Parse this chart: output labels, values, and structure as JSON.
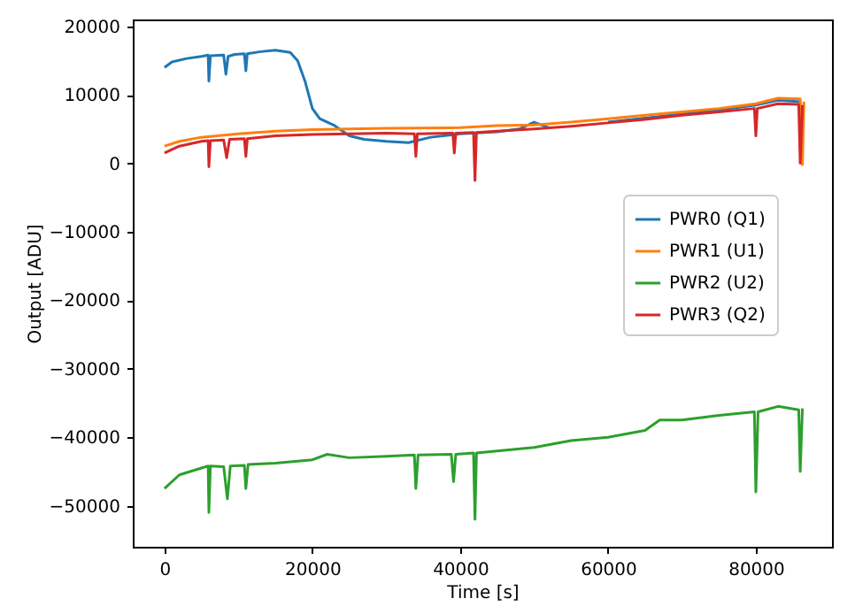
{
  "chart_data": {
    "type": "line",
    "xlabel": "Time [s]",
    "ylabel": "Output [ADU]",
    "xlim": [
      -4300,
      90300
    ],
    "ylim": [
      -56000,
      21000
    ],
    "xticks": [
      0,
      20000,
      40000,
      60000,
      80000
    ],
    "yticks": [
      20000,
      10000,
      0,
      {
        "value": -10000,
        "label": "−10000"
      },
      {
        "value": -20000,
        "label": "−20000"
      },
      {
        "value": -30000,
        "label": "−30000"
      },
      {
        "value": -40000,
        "label": "−40000"
      },
      {
        "value": -50000,
        "label": "−50000"
      }
    ],
    "grid": false,
    "legend": "right",
    "marker": "none",
    "line_style": "solid",
    "series": [
      {
        "name": "PWR0 (Q1)",
        "color": "#1f77b4",
        "x": [
          0,
          1000,
          3000,
          5000,
          5900,
          6000,
          6200,
          8000,
          8300,
          8600,
          9500,
          10800,
          11000,
          11200,
          13000,
          15000,
          17000,
          18000,
          19000,
          20000,
          21000,
          23000,
          25000,
          27000,
          30000,
          33000,
          36000,
          40000,
          45000,
          48000,
          50000,
          52000,
          56000,
          60000,
          65000,
          70000,
          75000,
          80000,
          83000,
          86000
        ],
        "values": [
          14000,
          14800,
          15300,
          15600,
          15800,
          12000,
          15700,
          15800,
          13000,
          15600,
          15900,
          16000,
          13500,
          16000,
          16300,
          16500,
          16200,
          15000,
          12000,
          8000,
          6500,
          5500,
          4000,
          3500,
          3200,
          3000,
          3800,
          4300,
          4600,
          5000,
          6000,
          5200,
          null,
          6000,
          6600,
          7200,
          7800,
          8500,
          9200,
          9000
        ]
      },
      {
        "name": "PWR1 (U1)",
        "color": "#ff7f0e",
        "x": [
          0,
          2000,
          5000,
          10000,
          15000,
          20000,
          30000,
          40000,
          45000,
          50000,
          55000,
          60000,
          65000,
          70000,
          75000,
          80000,
          83000,
          86000,
          86300,
          86500
        ],
        "values": [
          2500,
          3200,
          3800,
          4300,
          4700,
          4900,
          5100,
          5200,
          5500,
          5600,
          6000,
          6500,
          7000,
          7500,
          8000,
          8700,
          9500,
          9400,
          -200,
          9000
        ]
      },
      {
        "name": "PWR2 (U2)",
        "color": "#2ca02c",
        "x": [
          0,
          2000,
          5000,
          5900,
          6000,
          6200,
          8000,
          8500,
          8900,
          10800,
          11000,
          11300,
          15000,
          20000,
          22000,
          25000,
          30000,
          33800,
          34000,
          34300,
          38800,
          39100,
          39400,
          41800,
          42000,
          42200,
          45000,
          50000,
          55000,
          60000,
          65000,
          67000,
          70000,
          75000,
          79800,
          80000,
          80300,
          83000,
          85800,
          86000,
          86300
        ],
        "values": [
          -47500,
          -45500,
          -44500,
          -44200,
          -51000,
          -44200,
          -44300,
          -49000,
          -44200,
          -44100,
          -47500,
          -44000,
          -43800,
          -43300,
          -42500,
          -43000,
          -42800,
          -42600,
          -47500,
          -42600,
          -42500,
          -46500,
          -42500,
          -42300,
          -52000,
          -42300,
          -42000,
          -41500,
          -40500,
          -40000,
          -39000,
          -37500,
          -37500,
          -36800,
          -36300,
          -48000,
          -36300,
          -35500,
          -36000,
          -45000,
          -35800
        ]
      },
      {
        "name": "PWR3 (Q2)",
        "color": "#d62728",
        "x": [
          0,
          2000,
          5000,
          5900,
          6000,
          6200,
          8000,
          8400,
          8800,
          10800,
          11000,
          11200,
          15000,
          20000,
          25000,
          30000,
          33800,
          34000,
          34200,
          39000,
          39200,
          39400,
          41800,
          42000,
          42200,
          45000,
          50000,
          55000,
          60000,
          65000,
          70000,
          75000,
          79800,
          80000,
          80200,
          83000,
          85800,
          86000,
          86300
        ],
        "values": [
          1500,
          2500,
          3200,
          3300,
          -500,
          3300,
          3400,
          800,
          3500,
          3600,
          1000,
          3600,
          4000,
          4200,
          4300,
          4400,
          4300,
          1000,
          4300,
          4400,
          1500,
          4400,
          4500,
          -2500,
          4500,
          4700,
          5000,
          5400,
          5900,
          6400,
          7000,
          7500,
          8000,
          4000,
          8000,
          8700,
          8600,
          0,
          8500
        ]
      }
    ]
  }
}
